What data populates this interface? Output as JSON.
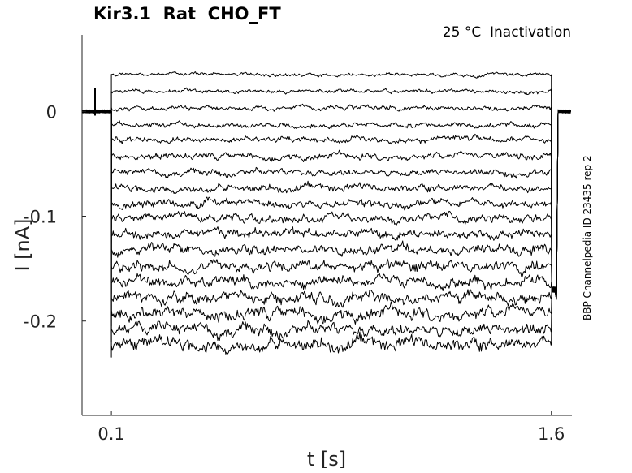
{
  "chart_data": {
    "type": "line",
    "title": "Kir3.1  Rat  CHO_FT",
    "subtitle": "25 °C  Inactivation",
    "side_note": "BBP Channelpedia ID 23435 rep 2",
    "xlabel": "t [s]",
    "ylabel": "I [nA]",
    "xlim": [
      0.0,
      1.67
    ],
    "ylim": [
      -0.29,
      0.073
    ],
    "xticks": [
      {
        "value": 0.1,
        "label": "0.1"
      },
      {
        "value": 1.6,
        "label": "1.6"
      }
    ],
    "yticks": [
      {
        "value": 0,
        "label": "0"
      },
      {
        "value": -0.1,
        "label": "-0.1"
      },
      {
        "value": -0.2,
        "label": "-0.2"
      }
    ],
    "grid": false,
    "step_start": 0.1,
    "step_end": 1.6,
    "baseline_before": 0.0,
    "baseline_after": -0.17,
    "sweep_levels": [
      0.035,
      0.019,
      0.003,
      -0.013,
      -0.027,
      -0.043,
      -0.058,
      -0.073,
      -0.088,
      -0.102,
      -0.117,
      -0.132,
      -0.148,
      -0.163,
      -0.178,
      -0.193,
      -0.208,
      -0.222
    ],
    "line_color": "#000000"
  }
}
